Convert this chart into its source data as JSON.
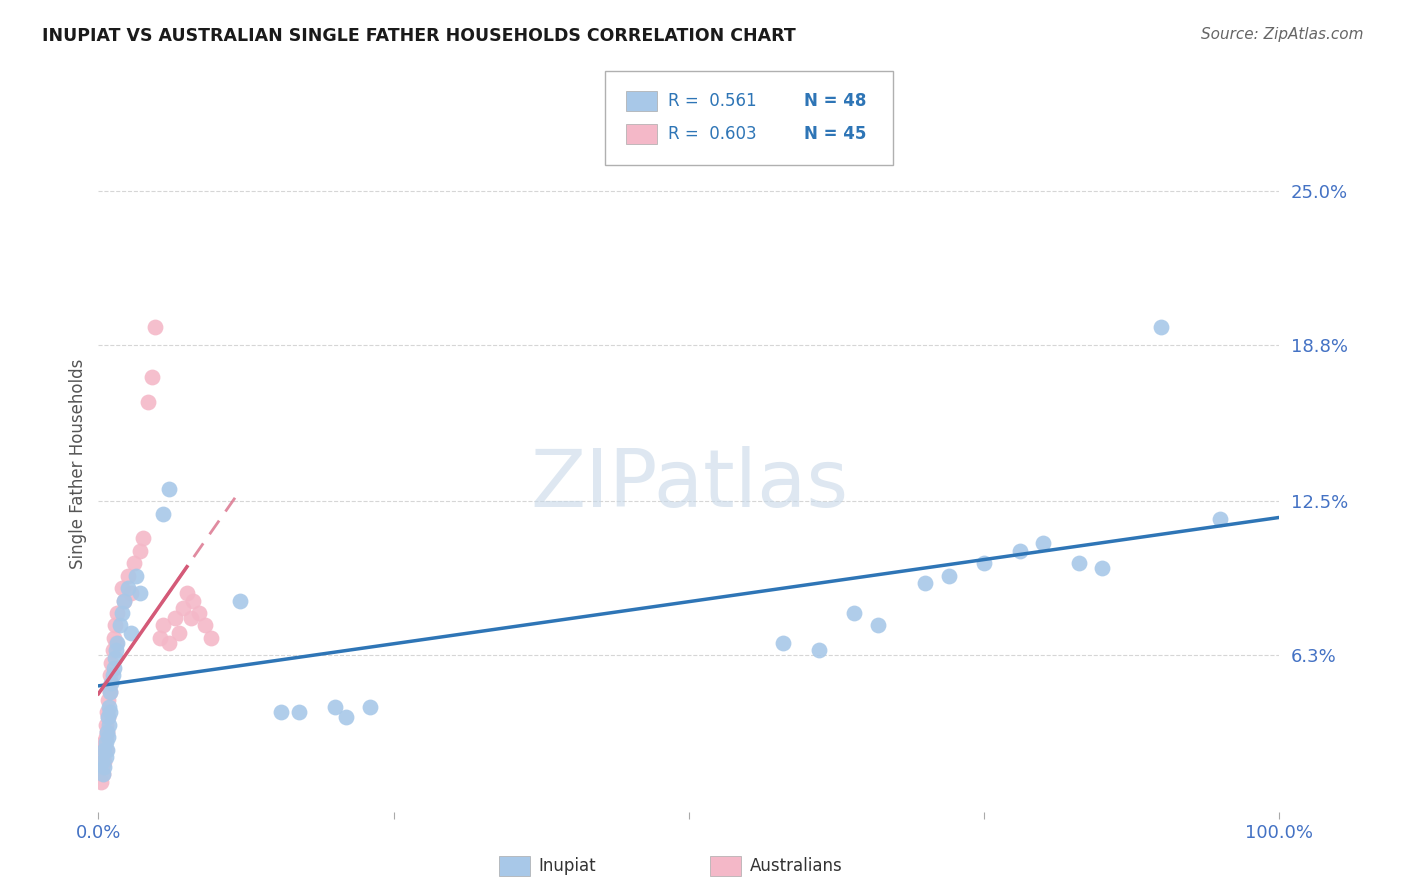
{
  "title": "INUPIAT VS AUSTRALIAN SINGLE FATHER HOUSEHOLDS CORRELATION CHART",
  "source": "Source: ZipAtlas.com",
  "ylabel": "Single Father Households",
  "xlim": [
    0,
    1.0
  ],
  "ylim": [
    0,
    0.28
  ],
  "ytick_labels": [
    "6.3%",
    "12.5%",
    "18.8%",
    "25.0%"
  ],
  "ytick_values": [
    0.063,
    0.125,
    0.188,
    0.25
  ],
  "legend_r1": "R =  0.561",
  "legend_n1": "N = 48",
  "legend_r2": "R =  0.603",
  "legend_n2": "N = 45",
  "inupiat_color": "#a8c8e8",
  "australians_color": "#f4b8c8",
  "trendline_inupiat_color": "#2e75b6",
  "trendline_australians_color": "#d45a78",
  "background_color": "#ffffff",
  "grid_color": "#cccccc",
  "watermark_color": "#c8d8e8",
  "inupiat_x": [
    0.003,
    0.004,
    0.005,
    0.005,
    0.006,
    0.006,
    0.007,
    0.007,
    0.008,
    0.008,
    0.009,
    0.009,
    0.01,
    0.01,
    0.011,
    0.012,
    0.013,
    0.014,
    0.015,
    0.016,
    0.018,
    0.02,
    0.022,
    0.025,
    0.028,
    0.032,
    0.035,
    0.055,
    0.06,
    0.12,
    0.155,
    0.17,
    0.2,
    0.21,
    0.23,
    0.58,
    0.61,
    0.64,
    0.66,
    0.7,
    0.72,
    0.75,
    0.78,
    0.8,
    0.83,
    0.85,
    0.9,
    0.95
  ],
  "inupiat_y": [
    0.02,
    0.015,
    0.025,
    0.018,
    0.028,
    0.022,
    0.032,
    0.025,
    0.038,
    0.03,
    0.042,
    0.035,
    0.048,
    0.04,
    0.052,
    0.055,
    0.058,
    0.062,
    0.065,
    0.068,
    0.075,
    0.08,
    0.085,
    0.09,
    0.072,
    0.095,
    0.088,
    0.12,
    0.13,
    0.085,
    0.04,
    0.04,
    0.042,
    0.038,
    0.042,
    0.068,
    0.065,
    0.08,
    0.075,
    0.092,
    0.095,
    0.1,
    0.105,
    0.108,
    0.1,
    0.098,
    0.195,
    0.118
  ],
  "australians_x": [
    0.002,
    0.003,
    0.003,
    0.004,
    0.004,
    0.005,
    0.005,
    0.006,
    0.006,
    0.006,
    0.007,
    0.007,
    0.008,
    0.008,
    0.009,
    0.01,
    0.01,
    0.011,
    0.012,
    0.013,
    0.014,
    0.015,
    0.016,
    0.02,
    0.022,
    0.025,
    0.028,
    0.03,
    0.035,
    0.038,
    0.042,
    0.045,
    0.048,
    0.052,
    0.055,
    0.06,
    0.065,
    0.068,
    0.072,
    0.075,
    0.078,
    0.08,
    0.085,
    0.09,
    0.095
  ],
  "australians_y": [
    0.012,
    0.018,
    0.025,
    0.015,
    0.022,
    0.028,
    0.02,
    0.035,
    0.025,
    0.03,
    0.04,
    0.032,
    0.045,
    0.038,
    0.05,
    0.055,
    0.048,
    0.06,
    0.065,
    0.07,
    0.075,
    0.068,
    0.08,
    0.09,
    0.085,
    0.095,
    0.088,
    0.1,
    0.105,
    0.11,
    0.165,
    0.175,
    0.195,
    0.07,
    0.075,
    0.068,
    0.078,
    0.072,
    0.082,
    0.088,
    0.078,
    0.085,
    0.08,
    0.075,
    0.07
  ]
}
